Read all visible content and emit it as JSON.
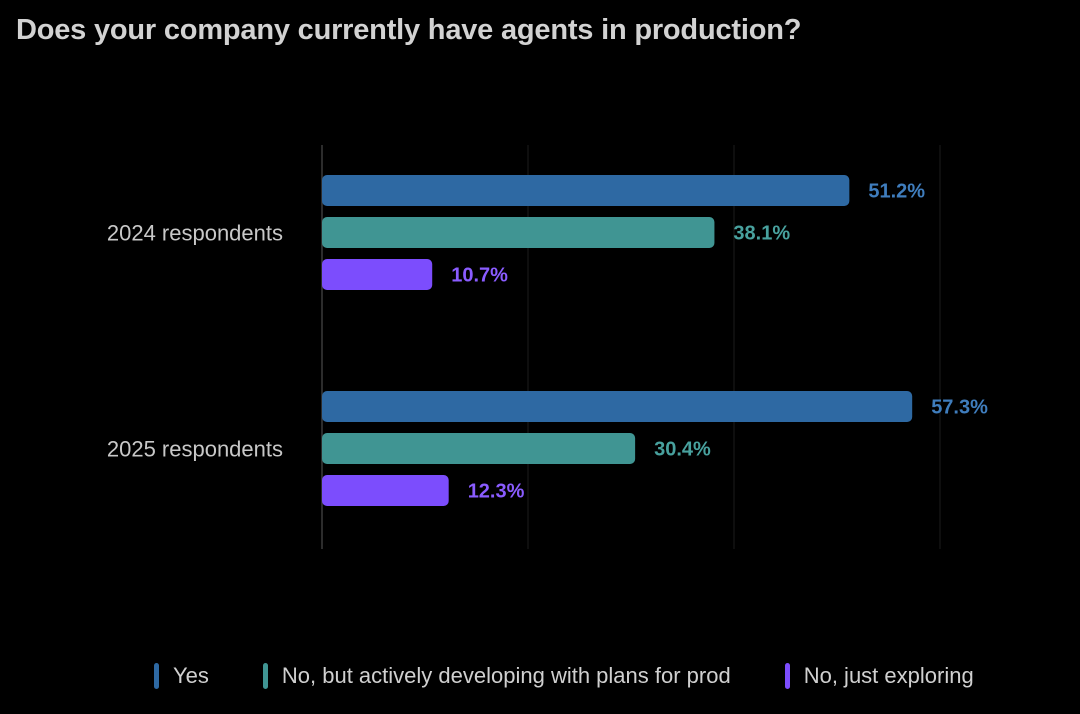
{
  "title": "Does your company currently have agents in production?",
  "chart_data": {
    "type": "bar",
    "orientation": "horizontal",
    "title": "Does your company currently have agents in production?",
    "categories": [
      "2024 respondents",
      "2025 respondents"
    ],
    "series": [
      {
        "name": "Yes",
        "color": "#2e69a3",
        "label_color": "#3f7dbd",
        "values": [
          51.2,
          57.3
        ],
        "labels": [
          "51.2%",
          "57.3%"
        ]
      },
      {
        "name": "No, but actively developing with plans for prod",
        "color": "#409593",
        "label_color": "#48a19e",
        "values": [
          38.1,
          30.4
        ],
        "labels": [
          "38.1%",
          "30.4%"
        ]
      },
      {
        "name": "No, just exploring",
        "color": "#7c4dfd",
        "label_color": "#8a5cff",
        "values": [
          10.7,
          12.3
        ],
        "labels": [
          "10.7%",
          "12.3%"
        ]
      }
    ],
    "xlim": [
      0,
      60
    ],
    "grid": true,
    "legend_position": "bottom"
  }
}
